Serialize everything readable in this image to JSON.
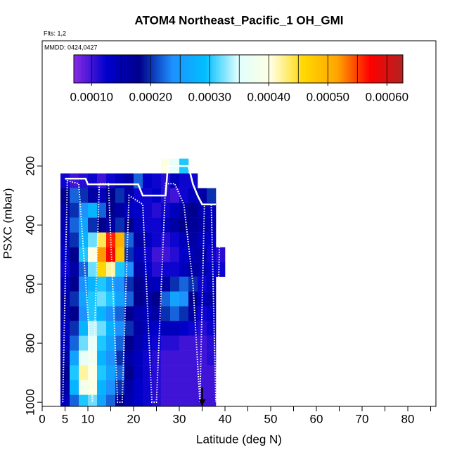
{
  "chart_data": {
    "type": "heatmap",
    "title": "ATOM4 Northeast_Pacific_1 OH_GMI",
    "subtitle": "Flts: 1,2",
    "annotation": "MMDD: 0424,0427",
    "xlabel": "Latitude (deg N)",
    "ylabel": "PSXC (mbar)",
    "xlim": [
      0,
      86.15
    ],
    "ylim": [
      1014,
      -224
    ],
    "xticks": [
      0,
      5,
      10,
      20,
      30,
      40,
      50,
      60,
      70,
      80
    ],
    "xminor": [
      15,
      25,
      35,
      45,
      55,
      65,
      75,
      85
    ],
    "yticks": [
      200,
      400,
      600,
      800,
      1000
    ],
    "clim": [
      7e-05,
      0.000627
    ],
    "colormap": [
      "#8a2be2",
      "#0000cd",
      "#00008b",
      "#1e90ff",
      "#00bfff",
      "#e0ffff",
      "#ffffe0",
      "#ffd700",
      "#ffa500",
      "#ff0000",
      "#b22222"
    ],
    "cbar_ticks": [
      {
        "value": 0.0001,
        "label": "0.00010"
      },
      {
        "value": 0.0002,
        "label": "0.00020"
      },
      {
        "value": 0.0003,
        "label": "0.00030"
      },
      {
        "value": 0.0004,
        "label": "0.00040"
      },
      {
        "value": 0.0005,
        "label": "0.00050"
      },
      {
        "value": 0.0006,
        "label": "0.00060"
      }
    ],
    "cbar_breaks": [
      0.0001,
      0.00015,
      0.0002,
      0.00025,
      0.0003,
      0.00035,
      0.0004,
      0.00045,
      0.0005,
      0.00055,
      0.0006
    ],
    "cells": {
      "lat_edges": [
        4,
        6,
        8,
        10,
        12,
        14,
        16,
        18,
        20,
        22,
        24,
        26,
        28,
        30,
        32,
        34,
        36,
        38,
        40
      ],
      "p_edges": [
        175,
        225,
        275,
        325,
        375,
        425,
        475,
        525,
        575,
        625,
        675,
        725,
        775,
        825,
        875,
        925,
        975,
        1025
      ],
      "values": [
        [
          null,
          null,
          null,
          null,
          null,
          null,
          null,
          null,
          null,
          null,
          null,
          0.0004,
          0.00036,
          0.0003,
          null,
          null,
          null,
          null
        ],
        [
          0.00012,
          0.0001,
          0.00011,
          0.00012,
          0.0001,
          0.00012,
          0.00014,
          0.00016,
          0.00022,
          0.00013,
          0.00012,
          0.00011,
          0.00014,
          0.00012,
          0.00012,
          null,
          null,
          null
        ],
        [
          0.00018,
          0.00022,
          0.0002,
          0.00016,
          0.00014,
          0.00018,
          0.0002,
          0.00016,
          0.00012,
          0.00012,
          0.00013,
          0.00011,
          0.0001,
          0.00012,
          0.00014,
          0.00016,
          0.0002,
          null
        ],
        [
          0.00016,
          0.0002,
          0.00024,
          0.00028,
          0.00022,
          0.00018,
          0.00016,
          0.00014,
          0.00013,
          0.00012,
          0.00011,
          0.00012,
          0.00014,
          0.00016,
          0.00018,
          0.00015,
          0.00014,
          null
        ],
        [
          0.00015,
          0.00022,
          0.00026,
          0.0002,
          0.00018,
          0.00016,
          0.0002,
          0.00018,
          0.00014,
          0.00012,
          0.00012,
          0.00014,
          0.00016,
          0.00018,
          0.00017,
          0.00016,
          0.00015,
          null
        ],
        [
          0.00014,
          0.0002,
          0.00028,
          0.00032,
          0.00044,
          0.00056,
          0.0005,
          0.00022,
          0.00016,
          0.00014,
          0.00012,
          0.00011,
          0.00012,
          0.00014,
          0.00016,
          0.00014,
          0.00013,
          null
        ],
        [
          0.00013,
          0.00018,
          0.0003,
          0.0004,
          0.00052,
          0.00058,
          0.00048,
          0.0002,
          0.00014,
          0.00012,
          0.0001,
          0.0001,
          0.00011,
          0.00013,
          0.00015,
          0.00016,
          0.00012,
          0.00011
        ],
        [
          0.00012,
          0.00016,
          0.00022,
          0.00032,
          0.00046,
          0.00042,
          0.0003,
          0.00024,
          0.00016,
          0.00013,
          0.00011,
          0.00012,
          0.00012,
          0.00014,
          0.00016,
          0.00015,
          0.00013,
          0.00012
        ],
        [
          0.00014,
          0.00018,
          0.00024,
          0.00028,
          0.0003,
          0.00026,
          0.00024,
          0.0002,
          0.00018,
          0.00015,
          0.00014,
          0.00016,
          0.0002,
          0.00022,
          0.0002,
          0.00012,
          0.00014,
          null
        ],
        [
          0.00016,
          0.0002,
          0.00026,
          0.0003,
          0.00032,
          0.0003,
          0.00026,
          0.00022,
          0.00018,
          0.00016,
          0.00018,
          0.00022,
          0.00026,
          0.00024,
          0.00018,
          0.00014,
          0.00016,
          null
        ],
        [
          0.00015,
          0.00018,
          0.00024,
          0.0003,
          0.00028,
          0.00024,
          0.00022,
          0.00018,
          0.00015,
          0.00014,
          0.00016,
          0.0002,
          0.00022,
          0.0002,
          0.00016,
          0.00012,
          0.00013,
          null
        ],
        [
          0.00014,
          0.0002,
          0.00028,
          0.00034,
          0.00032,
          0.00028,
          0.00024,
          0.0002,
          0.00016,
          0.00014,
          0.00013,
          0.00014,
          0.00014,
          0.00013,
          0.00012,
          0.00011,
          0.00012,
          null
        ],
        [
          0.00014,
          0.00022,
          0.00032,
          0.00036,
          0.0003,
          0.00026,
          0.00022,
          0.00018,
          0.00015,
          0.00013,
          0.00012,
          0.00011,
          0.00011,
          0.0001,
          0.0001,
          0.0001,
          0.00011,
          null
        ],
        [
          0.00016,
          0.00026,
          0.00036,
          0.00038,
          0.00028,
          0.00024,
          0.0002,
          0.00016,
          0.00014,
          0.00012,
          0.00011,
          0.0001,
          0.0001,
          0.0001,
          0.0001,
          0.0001,
          0.00011,
          null
        ],
        [
          0.00018,
          0.0003,
          0.00042,
          0.0004,
          0.0003,
          0.00026,
          0.00022,
          0.00018,
          0.00014,
          0.00012,
          0.00011,
          0.0001,
          0.0001,
          0.0001,
          0.0001,
          0.0001,
          0.0001,
          null
        ],
        [
          0.00016,
          0.00028,
          0.00038,
          0.0004,
          0.00028,
          0.00024,
          0.0002,
          0.00016,
          0.00013,
          0.00012,
          0.00011,
          0.0001,
          0.0001,
          0.0001,
          0.0001,
          0.0001,
          0.0001,
          null
        ],
        [
          0.00014,
          0.00022,
          0.0003,
          0.00032,
          0.00026,
          0.00022,
          0.00018,
          0.00015,
          0.00013,
          0.00012,
          0.00011,
          0.0001,
          0.0001,
          0.0001,
          0.0001,
          0.0001,
          0.0001,
          null
        ]
      ]
    },
    "lines": [
      {
        "color": "#ffffff",
        "style": "solid",
        "x": [
          5,
          9.5,
          10,
          21,
          22,
          27,
          27.5,
          32,
          33,
          34,
          35,
          38
        ],
        "y": [
          243,
          243,
          262,
          262,
          300,
          300,
          200,
          200,
          262,
          300,
          330,
          330
        ]
      },
      {
        "color": "#ffffff",
        "style": "dotted",
        "x": [
          4.5,
          5.5,
          8,
          10,
          11,
          12.5,
          14.5,
          16.5,
          17.5,
          19,
          22,
          24,
          25,
          27,
          29,
          31,
          33,
          34.5,
          35.5,
          37,
          38,
          39
        ],
        "y": [
          1000,
          250,
          260,
          700,
          1000,
          260,
          260,
          1000,
          1000,
          300,
          330,
          1000,
          1000,
          260,
          260,
          330,
          600,
          1000,
          330,
          330,
          1000,
          330
        ]
      }
    ],
    "arrow": {
      "x": 35,
      "y": [
        950,
        1012
      ]
    }
  }
}
